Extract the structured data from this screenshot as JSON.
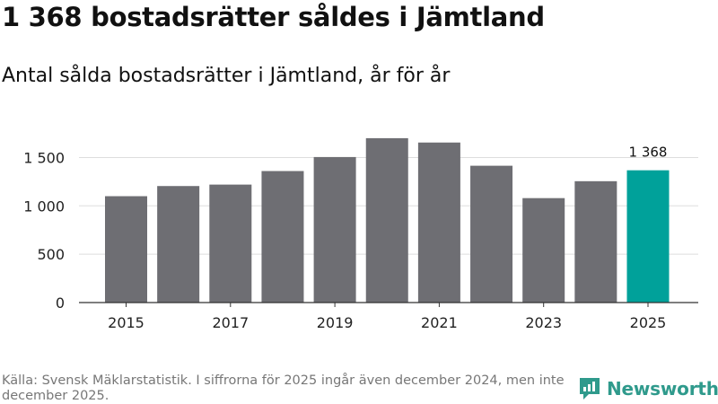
{
  "title": "1 368 bostadsrätter såldes i Jämtland",
  "subtitle": "Antal sålda bostadsrätter i Jämtland, år för år",
  "footer": "Källa: Svensk Mäklarstatistik. I siffrorna för 2025 ingår även december 2024, men inte december 2025.",
  "brand": {
    "name": "Newsworthy",
    "logo_icon": "newsworthy-logo-icon"
  },
  "colors": {
    "bar": "#6e6e73",
    "highlight": "#00a19a",
    "grid": "#dddddd",
    "axis": "#333333",
    "brand": "#2f9a8c"
  },
  "chart_data": {
    "type": "bar",
    "title": "Antal sålda bostadsrätter i Jämtland, år för år",
    "xlabel": "",
    "ylabel": "",
    "categories": [
      "2015",
      "2016",
      "2017",
      "2018",
      "2019",
      "2020",
      "2021",
      "2022",
      "2023",
      "2024",
      "2025"
    ],
    "values": [
      1100,
      1205,
      1220,
      1360,
      1505,
      1700,
      1655,
      1415,
      1080,
      1255,
      1368
    ],
    "x_tick_labels": [
      "2015",
      "2017",
      "2019",
      "2021",
      "2023",
      "2025"
    ],
    "y_ticks": [
      0,
      500,
      1000,
      1500
    ],
    "y_tick_labels": [
      "0",
      "500",
      "1 000",
      "1 500"
    ],
    "ylim": [
      0,
      1800
    ],
    "grid": true,
    "highlight_index": 10,
    "data_labels": [
      {
        "index": 10,
        "text": "1 368"
      }
    ]
  }
}
